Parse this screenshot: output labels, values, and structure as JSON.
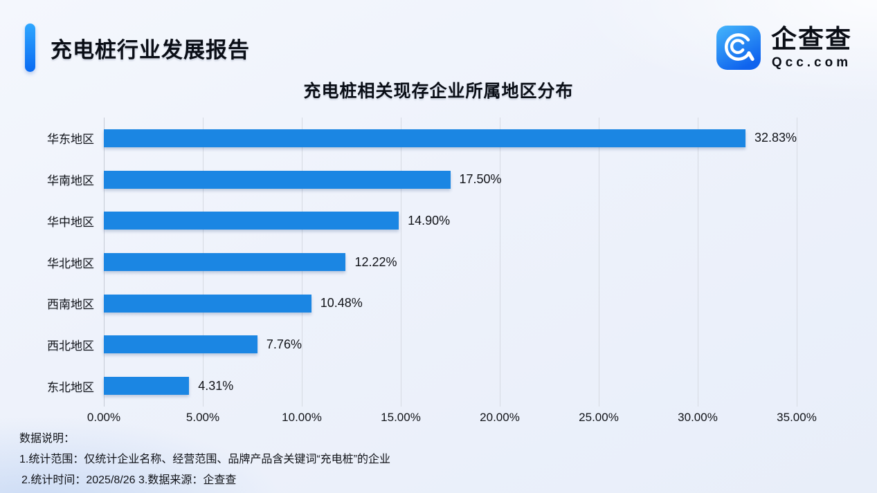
{
  "header": {
    "title": "充电桩行业发展报告",
    "logo": {
      "brand": "企查查",
      "domain": "Qcc.com"
    }
  },
  "chart_data": {
    "type": "bar",
    "orientation": "horizontal",
    "title": "充电桩相关现存企业所属地区分布",
    "categories": [
      "华东地区",
      "华南地区",
      "华中地区",
      "华北地区",
      "西南地区",
      "西北地区",
      "东北地区"
    ],
    "values": [
      32.83,
      17.5,
      14.9,
      12.22,
      10.48,
      7.76,
      4.31
    ],
    "value_labels": [
      "32.83%",
      "17.50%",
      "14.90%",
      "12.22%",
      "10.48%",
      "7.76%",
      "4.31%"
    ],
    "xlabel": "",
    "ylabel": "",
    "xlim": [
      0,
      35
    ],
    "x_tick_values": [
      0,
      5,
      10,
      15,
      20,
      25,
      30,
      35
    ],
    "x_ticks": [
      "0.00%",
      "5.00%",
      "10.00%",
      "15.00%",
      "20.00%",
      "25.00%",
      "30.00%",
      "35.00%"
    ],
    "grid": true,
    "legend": "none",
    "bar_color": "#1b86e3"
  },
  "footer": {
    "heading": "数据说明：",
    "note1": "1.统计范围：仅统计企业名称、经营范围、品牌产品含关键词“充电桩”的企业",
    "note2": "2.统计时间：2025/8/26  3.数据来源：企查查"
  },
  "colors": {
    "bar": "#1b86e3",
    "accent_top": "#2fa7ff",
    "accent_bottom": "#0a6af2",
    "gridline": "#d6dae2"
  }
}
